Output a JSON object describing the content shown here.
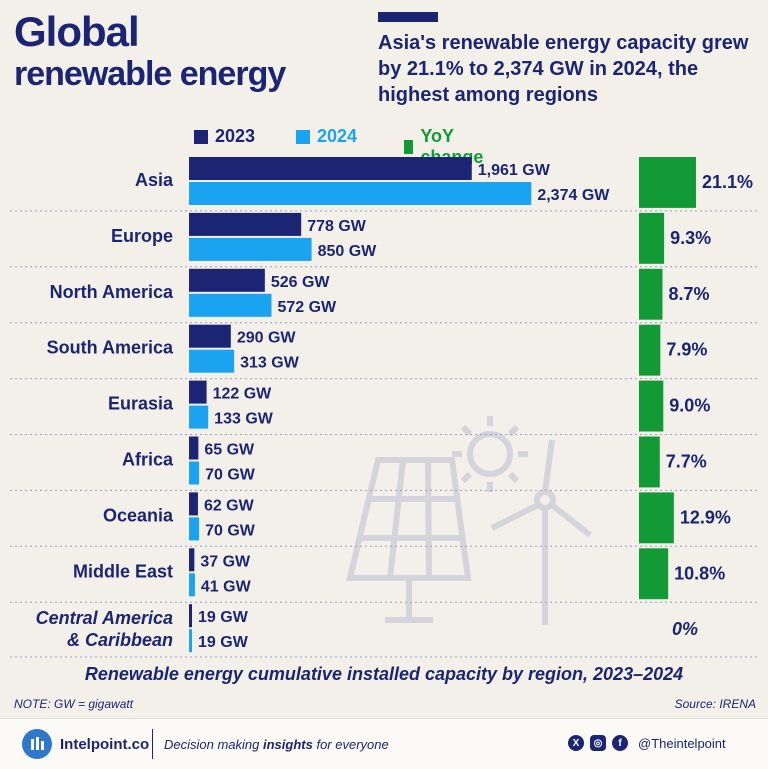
{
  "header": {
    "title_line1": "Global",
    "title_line2": "renewable energy",
    "subtitle": "Asia's renewable energy capacity grew by 21.1% to 2,374 GW in 2024, the highest among regions"
  },
  "legend": {
    "item_2023": "2023",
    "item_2024": "2024",
    "item_yoy": "YoY change"
  },
  "colors": {
    "navy": "#1b2573",
    "light_blue": "#1aa3f0",
    "green": "#129a36"
  },
  "chart_data": {
    "type": "bar",
    "orientation": "horizontal",
    "title": "Renewable energy cumulative installed capacity by region, 2023–2024",
    "unit": "GW",
    "categories": [
      "Asia",
      "Europe",
      "North America",
      "South America",
      "Eurasia",
      "Africa",
      "Oceania",
      "Middle East",
      "Central America & Caribbean"
    ],
    "category_display": [
      [
        "Asia"
      ],
      [
        "Europe"
      ],
      [
        "North America"
      ],
      [
        "South America"
      ],
      [
        "Eurasia"
      ],
      [
        "Africa"
      ],
      [
        "Oceania"
      ],
      [
        "Middle East"
      ],
      [
        "Central America",
        "& Caribbean"
      ]
    ],
    "series": [
      {
        "name": "2023",
        "values": [
          1961,
          778,
          526,
          290,
          122,
          65,
          62,
          37,
          19
        ],
        "labels": [
          "1,961 GW",
          "778 GW",
          "526 GW",
          "290 GW",
          "122 GW",
          "65 GW",
          "62 GW",
          "37 GW",
          "19 GW"
        ]
      },
      {
        "name": "2024",
        "values": [
          2374,
          850,
          572,
          313,
          133,
          70,
          70,
          41,
          19
        ],
        "labels": [
          "2,374 GW",
          "850 GW",
          "572 GW",
          "313 GW",
          "133 GW",
          "70 GW",
          "70 GW",
          "41 GW",
          "19 GW"
        ]
      },
      {
        "name": "YoY change",
        "values": [
          21.1,
          9.3,
          8.7,
          7.9,
          9.0,
          7.7,
          12.9,
          10.8,
          0
        ],
        "labels": [
          "21.1%",
          "9.3%",
          "8.7%",
          "7.9%",
          "9.0%",
          "7.7%",
          "12.9%",
          "10.8%",
          "0%"
        ]
      }
    ]
  },
  "footnotes": {
    "note": "NOTE: GW = gigawatt",
    "source": "Source: IRENA"
  },
  "footer": {
    "brand": "Intelpoint.co",
    "tagline_pre": "Decision making ",
    "tagline_bold": "insights",
    "tagline_post": " for everyone",
    "handle": "@Theintelpoint"
  }
}
